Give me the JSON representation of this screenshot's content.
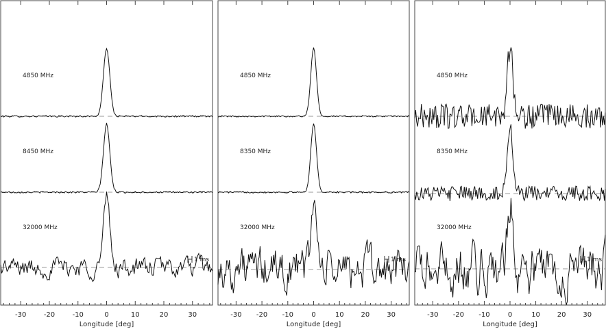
{
  "chart_data": [
    {
      "type": "line",
      "xlabel": "Longitude [deg]",
      "xlim": [
        -37,
        37
      ],
      "xticks": [
        -30,
        -20,
        -10,
        0,
        10,
        20,
        30
      ],
      "series": [
        {
          "name": "4850 MHz",
          "peak_longitude": 0,
          "peak_amplitude": 1.0,
          "noise_level": 0.012
        },
        {
          "name": "8450 MHz",
          "peak_longitude": 0,
          "peak_amplitude": 1.0,
          "noise_level": 0.012
        },
        {
          "name": "32000 MHz",
          "peak_longitude": 0,
          "peak_amplitude": 1.0,
          "noise_level": 0.12
        }
      ],
      "resolution_label": "1 ms"
    },
    {
      "type": "line",
      "xlabel": "Longitude [deg]",
      "xlim": [
        -37,
        37
      ],
      "xticks": [
        -30,
        -20,
        -10,
        0,
        10,
        20,
        30
      ],
      "series": [
        {
          "name": "4850 MHz",
          "peak_longitude": 0,
          "peak_amplitude": 1.0,
          "noise_level": 0.01
        },
        {
          "name": "8350 MHz",
          "peak_longitude": 0,
          "peak_amplitude": 1.0,
          "noise_level": 0.012
        },
        {
          "name": "32000 MHz",
          "peak_longitude": 0,
          "peak_amplitude": 1.0,
          "noise_level": 0.25
        }
      ],
      "resolution_label": "1 ms"
    },
    {
      "type": "line",
      "xlabel": "Longitude [deg]",
      "xlim": [
        -37,
        37
      ],
      "xticks": [
        -30,
        -20,
        -10,
        0,
        10,
        20,
        30
      ],
      "series": [
        {
          "name": "4850 MHz",
          "peak_longitude": 0,
          "peak_amplitude": 1.0,
          "noise_level": 0.18
        },
        {
          "name": "8350 MHz",
          "peak_longitude": 0,
          "peak_amplitude": 1.0,
          "noise_level": 0.11
        },
        {
          "name": "32000 MHz",
          "peak_longitude": 0,
          "peak_amplitude": 1.0,
          "noise_level": 0.3
        }
      ],
      "resolution_label": "1 ms"
    }
  ]
}
